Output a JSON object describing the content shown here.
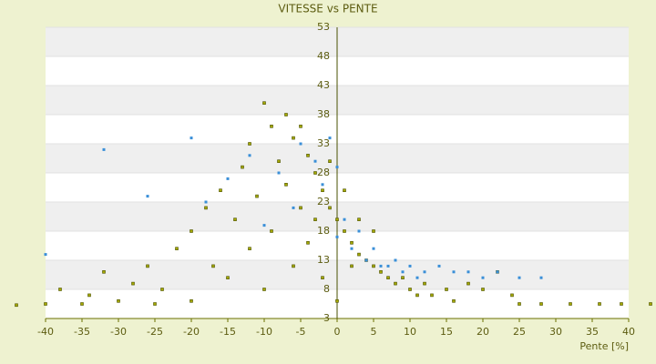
{
  "chart_data": {
    "type": "scatter",
    "title": "VITESSE vs PENTE",
    "x_label": "Pente [%]",
    "xlim": [
      -40,
      40
    ],
    "ylim": [
      3,
      53
    ],
    "xticks": [
      -40,
      -35,
      -30,
      -25,
      -20,
      -15,
      -10,
      -5,
      0,
      5,
      10,
      15,
      20,
      25,
      30,
      35,
      40
    ],
    "yticks": [
      3,
      8,
      13,
      18,
      23,
      28,
      33,
      38,
      43,
      48,
      53
    ],
    "grid": true,
    "series": [
      {
        "color": "#a4a800",
        "x": [
          -44,
          -40,
          -38,
          -35,
          -34,
          -32,
          -30,
          -28,
          -26,
          -25,
          -24,
          -22,
          -20,
          -20,
          -18,
          -17,
          -16,
          -15,
          -14,
          -13,
          -12,
          -12,
          -11,
          -10,
          -10,
          -9,
          -9,
          -8,
          -7,
          -7,
          -6,
          -6,
          -5,
          -5,
          -4,
          -4,
          -3,
          -3,
          -2,
          -2,
          -1,
          -1,
          0,
          0,
          1,
          1,
          2,
          2,
          3,
          3,
          4,
          5,
          5,
          6,
          7,
          8,
          9,
          10,
          11,
          12,
          13,
          15,
          16,
          18,
          20,
          22,
          24,
          25,
          28,
          32,
          36,
          39,
          43
        ],
        "values": [
          5.3,
          5.5,
          8,
          5.5,
          7,
          11,
          6,
          9,
          12,
          5.5,
          8,
          15,
          18,
          6,
          22,
          12,
          25,
          10,
          20,
          29,
          33,
          15,
          24,
          40,
          8,
          36,
          18,
          30,
          26,
          38,
          34,
          12,
          36,
          22,
          31,
          16,
          28,
          20,
          25,
          10,
          22,
          30,
          20,
          6,
          18,
          25,
          16,
          12,
          14,
          20,
          13,
          12,
          18,
          11,
          10,
          9,
          10,
          8,
          7,
          9,
          7,
          8,
          6,
          9,
          8,
          11,
          7,
          5.5,
          5.5,
          5.5,
          5.5,
          5.5,
          5.5
        ]
      },
      {
        "color": "#3a8fd8",
        "x": [
          -40,
          -32,
          -26,
          -20,
          -18,
          -15,
          -12,
          -10,
          -8,
          -6,
          -5,
          -3,
          -2,
          -1,
          0,
          0,
          1,
          2,
          3,
          4,
          5,
          6,
          7,
          8,
          9,
          10,
          11,
          12,
          14,
          16,
          18,
          20,
          22,
          25,
          28
        ],
        "values": [
          14,
          32,
          24,
          34,
          23,
          27,
          31,
          19,
          28,
          22,
          33,
          30,
          26,
          34,
          29,
          17,
          20,
          15,
          18,
          13,
          15,
          12,
          12,
          13,
          11,
          12,
          10,
          11,
          12,
          11,
          11,
          10,
          11,
          10,
          10
        ]
      }
    ]
  }
}
